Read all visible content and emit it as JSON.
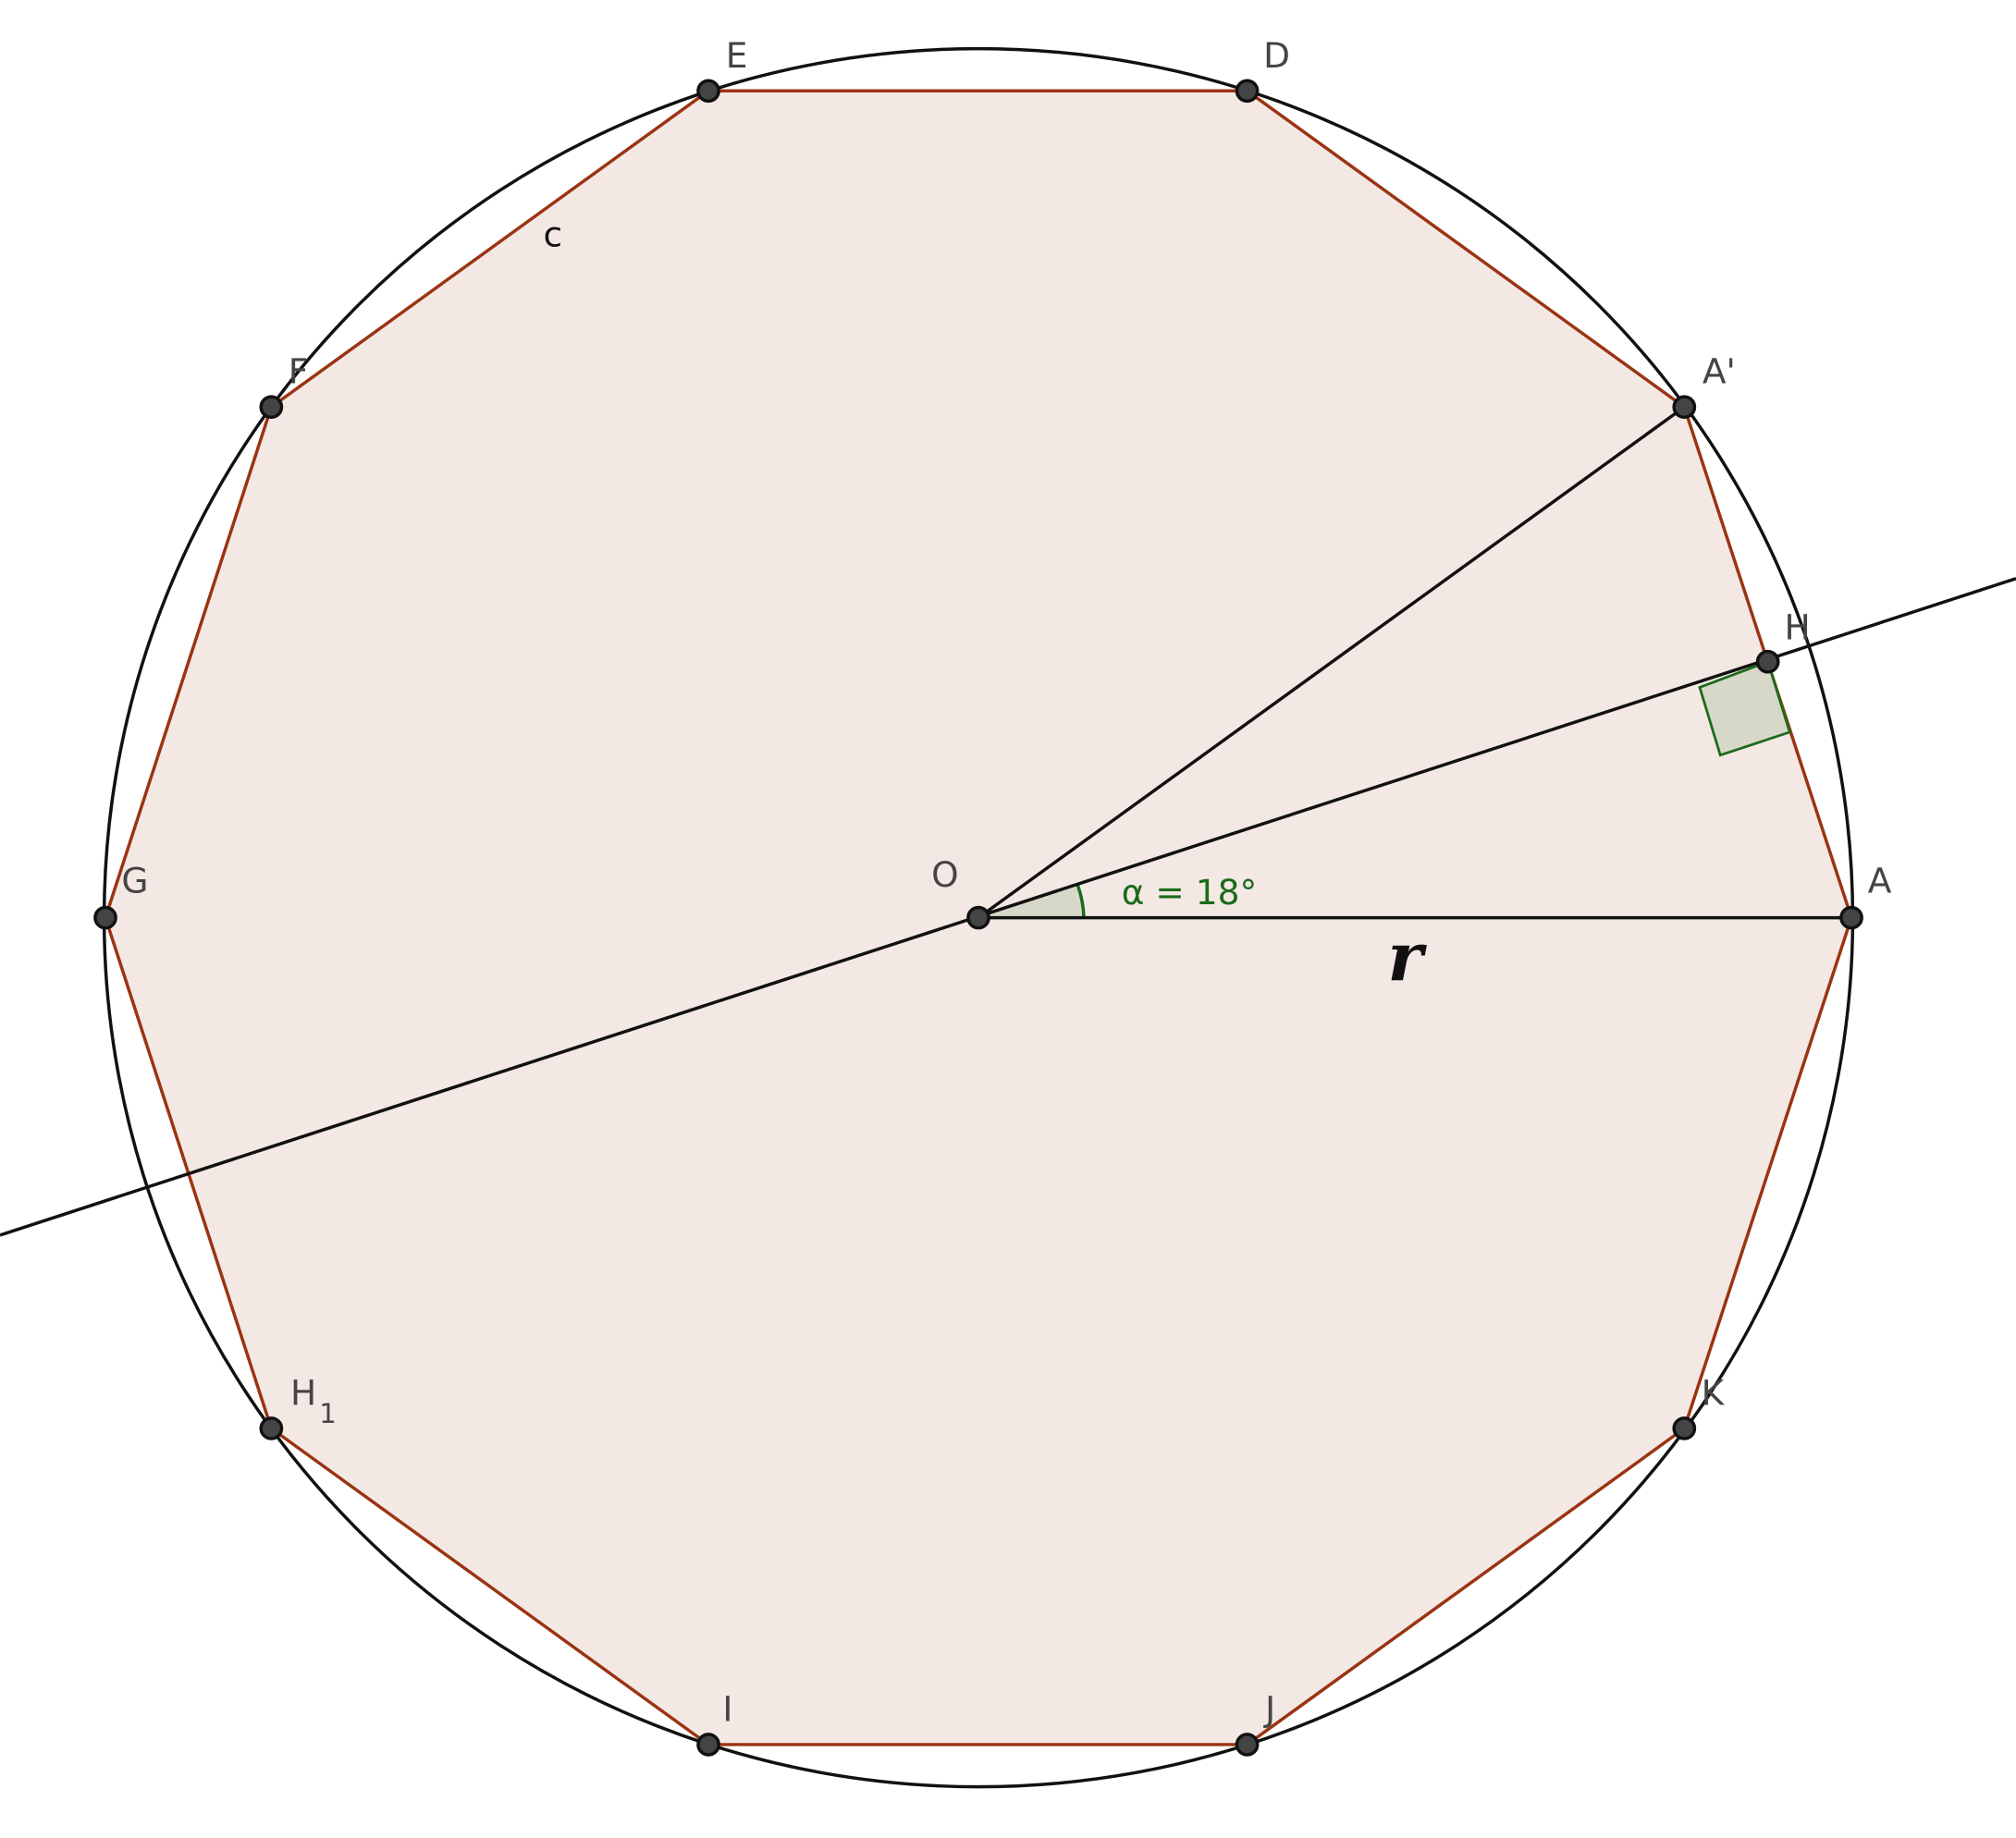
{
  "points": [
    {
      "label": "E"
    },
    {
      "label": "D"
    },
    {
      "label": "A'"
    },
    {
      "label": "H"
    },
    {
      "label": "A"
    },
    {
      "label": "K"
    },
    {
      "label": "J"
    },
    {
      "label": "I"
    },
    {
      "label": "H",
      "subscript": "1"
    },
    {
      "label": "G"
    },
    {
      "label": "F"
    },
    {
      "label": "O"
    }
  ],
  "segment_label": "c",
  "angle_label": "α = 18°",
  "radius_label": "r"
}
